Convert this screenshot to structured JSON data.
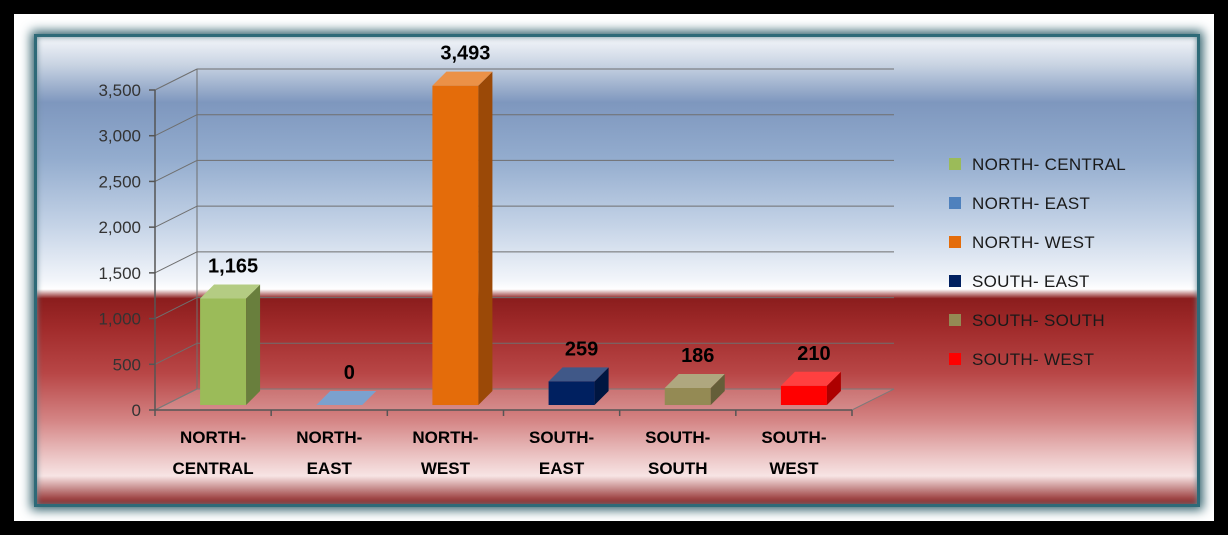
{
  "chart_data": {
    "type": "bar",
    "categories": [
      "NORTH- CENTRAL",
      "NORTH- EAST",
      "NORTH- WEST",
      "SOUTH- EAST",
      "SOUTH- SOUTH",
      "SOUTH- WEST"
    ],
    "category_axis_labels": [
      [
        "NORTH-",
        "CENTRAL"
      ],
      [
        "NORTH-",
        "EAST"
      ],
      [
        "NORTH-",
        "WEST"
      ],
      [
        "SOUTH-",
        "EAST"
      ],
      [
        "SOUTH-",
        "SOUTH"
      ],
      [
        "SOUTH-",
        "WEST"
      ]
    ],
    "values": [
      1165,
      0,
      3493,
      259,
      186,
      210
    ],
    "data_labels": [
      "1,165",
      "0",
      "3,493",
      "259",
      "186",
      "210"
    ],
    "colors": [
      "#9bbb59",
      "#4f81bd",
      "#e46c0a",
      "#002060",
      "#948a54",
      "#ff0000"
    ],
    "ylim": [
      0,
      3500
    ],
    "yticks": [
      0,
      500,
      1000,
      1500,
      2000,
      2500,
      3000,
      3500
    ],
    "ytick_labels": [
      "0",
      "500",
      "1,000",
      "1,500",
      "2,000",
      "2,500",
      "3,000",
      "3,500"
    ],
    "legend": [
      "NORTH- CENTRAL",
      "NORTH- EAST",
      "NORTH- WEST",
      "SOUTH- EAST",
      "SOUTH- SOUTH",
      "SOUTH- WEST"
    ],
    "legend_position": "right",
    "grid": true,
    "style": "3d",
    "title": "",
    "xlabel": "",
    "ylabel": ""
  }
}
